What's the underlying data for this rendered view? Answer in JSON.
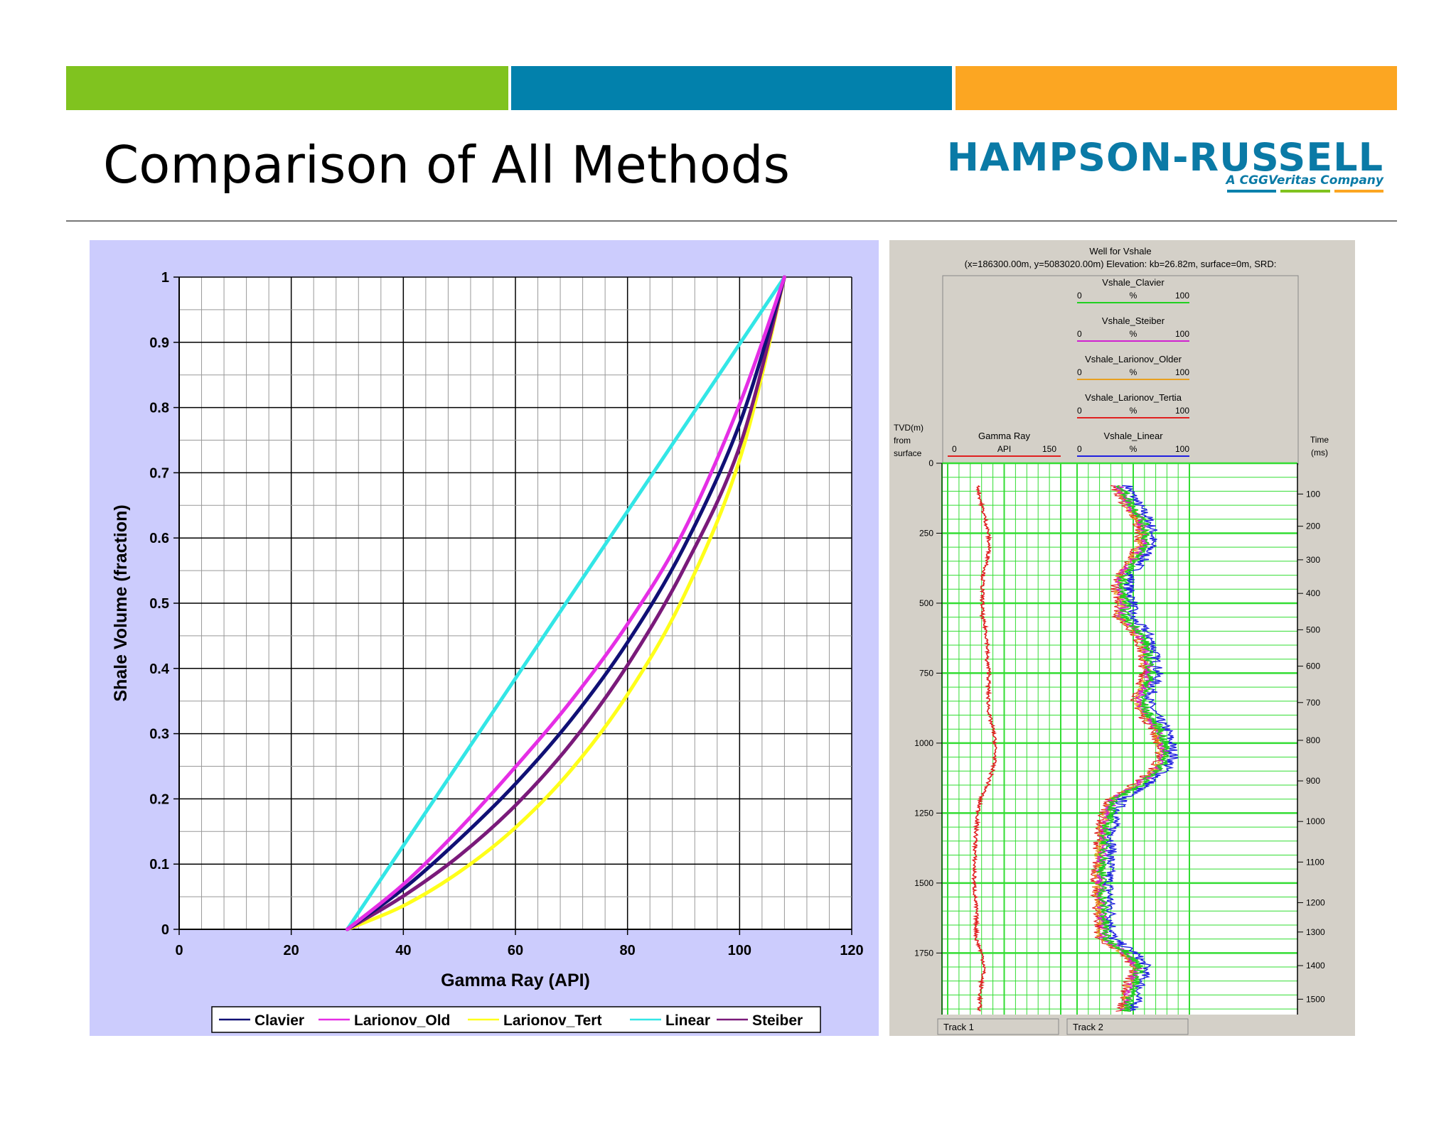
{
  "slide": {
    "title": "Comparison of All Methods",
    "logo_main": "HAMPSON-RUSSELL",
    "logo_sub": "A CGGVeritas Company",
    "logo_line_colors": [
      "#0281ac",
      "#80c31f",
      "#fca622"
    ],
    "bar_colors": [
      "#80c31f",
      "#0281ac",
      "#fca622"
    ]
  },
  "chart_data": [
    {
      "type": "line",
      "title": "",
      "xlabel": "Gamma Ray (API)",
      "ylabel": "Shale Volume (fraction)",
      "xlim": [
        0,
        120
      ],
      "ylim": [
        0,
        1
      ],
      "x_ticks": [
        0,
        20,
        40,
        60,
        80,
        100,
        120
      ],
      "y_ticks": [
        0,
        0.1,
        0.2,
        0.3,
        0.4,
        0.5,
        0.6,
        0.7,
        0.8,
        0.9,
        1
      ],
      "x_tick_labels": [
        "0",
        "20",
        "40",
        "60",
        "80",
        "100",
        "120"
      ],
      "y_tick_labels": [
        "0",
        "0.1",
        "0.2",
        "0.3",
        "0.4",
        "0.5",
        "0.6",
        "0.7",
        "0.8",
        "0.9",
        "1"
      ],
      "grid": true,
      "legend": "bottom",
      "series": [
        {
          "name": "Clavier",
          "color": "#101075",
          "x": [
            30,
            40,
            50,
            60,
            70,
            80,
            90,
            100,
            108
          ],
          "y": [
            0,
            0.062,
            0.138,
            0.223,
            0.322,
            0.44,
            0.585,
            0.775,
            1
          ]
        },
        {
          "name": "Larionov_Old",
          "color": "#e52ee5",
          "x": [
            30,
            40,
            50,
            60,
            70,
            80,
            90,
            100,
            108
          ],
          "y": [
            0,
            0.069,
            0.154,
            0.249,
            0.351,
            0.468,
            0.61,
            0.805,
            1
          ]
        },
        {
          "name": "Larionov_Tert",
          "color": "#ffff1a",
          "x": [
            30,
            40,
            50,
            60,
            70,
            80,
            90,
            100,
            108
          ],
          "y": [
            0,
            0.036,
            0.088,
            0.156,
            0.245,
            0.36,
            0.51,
            0.72,
            1
          ]
        },
        {
          "name": "Linear",
          "color": "#33e6e6",
          "x": [
            30,
            108
          ],
          "y": [
            0,
            1
          ]
        },
        {
          "name": "Steiber",
          "color": "#7a1a7a",
          "x": [
            30,
            40,
            50,
            60,
            70,
            80,
            90,
            100,
            108
          ],
          "y": [
            0,
            0.051,
            0.113,
            0.19,
            0.286,
            0.405,
            0.552,
            0.74,
            1
          ]
        }
      ]
    },
    {
      "type": "line",
      "title": "Well for Vshale",
      "subtitle": "(x=186300.00m, y=5083020.00m) Elevation: kb=26.82m, surface=0m, SRD:",
      "depth_label": [
        "TVD(m)",
        "from",
        "surface"
      ],
      "time_label": [
        "Time",
        "(ms)"
      ],
      "depth_ticks": [
        0,
        250,
        500,
        750,
        1000,
        1250,
        1500,
        1750
      ],
      "time_ticks": [
        100,
        200,
        300,
        400,
        500,
        600,
        700,
        800,
        900,
        1000,
        1100,
        1200,
        1300,
        1400,
        1500
      ],
      "time_depths": [
        110,
        225,
        345,
        465,
        595,
        725,
        855,
        990,
        1135,
        1280,
        1425,
        1570,
        1675,
        1795,
        1915
      ],
      "depth_max": 1970,
      "tracks": [
        "Track 1",
        "Track 2"
      ],
      "gamma_header": {
        "name": "Gamma Ray",
        "min": "0",
        "unit": "API",
        "max": "150",
        "color": "#e02020"
      },
      "vshale_headers": [
        {
          "name": "Vshale_Clavier",
          "min": "0",
          "unit": "%",
          "max": "100",
          "color": "#20d020"
        },
        {
          "name": "Vshale_Steiber",
          "min": "0",
          "unit": "%",
          "max": "100",
          "color": "#d020d0"
        },
        {
          "name": "Vshale_Larionov_Older",
          "min": "0",
          "unit": "%",
          "max": "100",
          "color": "#e8a020"
        },
        {
          "name": "Vshale_Larionov_Tertia",
          "min": "0",
          "unit": "%",
          "max": "100",
          "color": "#e02020"
        },
        {
          "name": "Vshale_Linear",
          "min": "0",
          "unit": "%",
          "max": "100",
          "color": "#2020e0"
        }
      ],
      "gamma_api": [
        {
          "depth": 80,
          "value": 40
        },
        {
          "depth": 150,
          "value": 45
        },
        {
          "depth": 200,
          "value": 50
        },
        {
          "depth": 250,
          "value": 54
        },
        {
          "depth": 300,
          "value": 55
        },
        {
          "depth": 350,
          "value": 53
        },
        {
          "depth": 400,
          "value": 47
        },
        {
          "depth": 450,
          "value": 46
        },
        {
          "depth": 500,
          "value": 46
        },
        {
          "depth": 550,
          "value": 46
        },
        {
          "depth": 600,
          "value": 51
        },
        {
          "depth": 650,
          "value": 53
        },
        {
          "depth": 700,
          "value": 52
        },
        {
          "depth": 750,
          "value": 55
        },
        {
          "depth": 800,
          "value": 54
        },
        {
          "depth": 850,
          "value": 54
        },
        {
          "depth": 900,
          "value": 55
        },
        {
          "depth": 950,
          "value": 60
        },
        {
          "depth": 1000,
          "value": 63
        },
        {
          "depth": 1050,
          "value": 63
        },
        {
          "depth": 1100,
          "value": 59
        },
        {
          "depth": 1150,
          "value": 53
        },
        {
          "depth": 1200,
          "value": 43
        },
        {
          "depth": 1300,
          "value": 38
        },
        {
          "depth": 1400,
          "value": 36
        },
        {
          "depth": 1500,
          "value": 35
        },
        {
          "depth": 1600,
          "value": 38
        },
        {
          "depth": 1700,
          "value": 38
        },
        {
          "depth": 1750,
          "value": 45
        },
        {
          "depth": 1800,
          "value": 49
        },
        {
          "depth": 1850,
          "value": 45
        },
        {
          "depth": 1900,
          "value": 43
        },
        {
          "depth": 1960,
          "value": 42
        }
      ],
      "vshale_linear_pct": [
        {
          "depth": 80,
          "value": 45
        },
        {
          "depth": 150,
          "value": 55
        },
        {
          "depth": 200,
          "value": 64
        },
        {
          "depth": 250,
          "value": 68
        },
        {
          "depth": 300,
          "value": 66
        },
        {
          "depth": 350,
          "value": 58
        },
        {
          "depth": 400,
          "value": 48
        },
        {
          "depth": 450,
          "value": 46
        },
        {
          "depth": 500,
          "value": 50
        },
        {
          "depth": 550,
          "value": 48
        },
        {
          "depth": 600,
          "value": 62
        },
        {
          "depth": 650,
          "value": 68
        },
        {
          "depth": 700,
          "value": 70
        },
        {
          "depth": 750,
          "value": 72
        },
        {
          "depth": 800,
          "value": 68
        },
        {
          "depth": 850,
          "value": 64
        },
        {
          "depth": 900,
          "value": 70
        },
        {
          "depth": 950,
          "value": 80
        },
        {
          "depth": 1000,
          "value": 84
        },
        {
          "depth": 1050,
          "value": 86
        },
        {
          "depth": 1100,
          "value": 78
        },
        {
          "depth": 1150,
          "value": 62
        },
        {
          "depth": 1200,
          "value": 40
        },
        {
          "depth": 1300,
          "value": 32
        },
        {
          "depth": 1400,
          "value": 30
        },
        {
          "depth": 1500,
          "value": 28
        },
        {
          "depth": 1600,
          "value": 30
        },
        {
          "depth": 1700,
          "value": 32
        },
        {
          "depth": 1750,
          "value": 52
        },
        {
          "depth": 1800,
          "value": 62
        },
        {
          "depth": 1850,
          "value": 58
        },
        {
          "depth": 1900,
          "value": 54
        },
        {
          "depth": 1960,
          "value": 50
        }
      ]
    }
  ]
}
